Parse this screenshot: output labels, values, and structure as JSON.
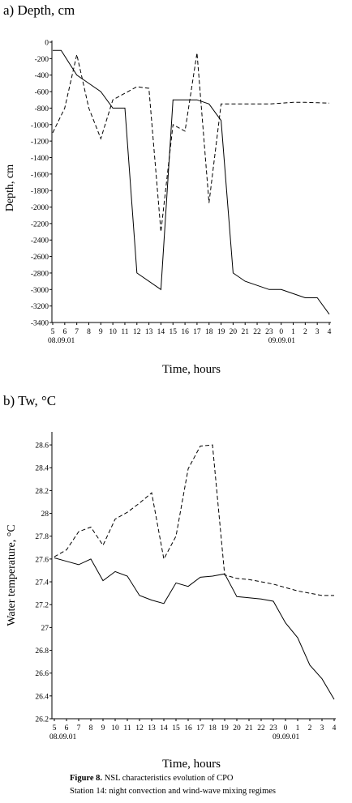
{
  "figure": {
    "caption_label": "Figure 8.",
    "caption_text": " NSL characteristics evolution of CPO",
    "caption_line2": "Station 14: night convection and wind-wave mixing regimes"
  },
  "chart_data": [
    {
      "type": "line",
      "title": "a) Depth, cm",
      "xlabel": "Time, hours",
      "ylabel": "Depth, cm",
      "categories": [
        "5",
        "6",
        "7",
        "8",
        "9",
        "10",
        "11",
        "12",
        "13",
        "14",
        "15",
        "16",
        "17",
        "18",
        "19",
        "20",
        "21",
        "22",
        "23",
        "0",
        "1",
        "2",
        "3",
        "4"
      ],
      "date_labels": [
        {
          "index": 0,
          "text": "08.09.01"
        },
        {
          "index": 19,
          "text": "09.09.01"
        }
      ],
      "ylim": [
        -3400,
        0
      ],
      "yticks": [
        0,
        -200,
        -400,
        -600,
        -800,
        -1000,
        -1200,
        -1400,
        -1600,
        -1800,
        -2000,
        -2200,
        -2400,
        -2600,
        -2800,
        -3000,
        -3200,
        -3400
      ],
      "grid": false,
      "series": [
        {
          "style": "solid",
          "points": [
            [
              0,
              -100
            ],
            [
              0.7,
              -100
            ],
            [
              2,
              -400
            ],
            [
              3,
              -500
            ],
            [
              4,
              -600
            ],
            [
              5,
              -800
            ],
            [
              6,
              -800
            ],
            [
              7,
              -2800
            ],
            [
              9,
              -3000
            ],
            [
              10,
              -700
            ],
            [
              12,
              -700
            ],
            [
              13,
              -750
            ],
            [
              14,
              -950
            ],
            [
              15,
              -2800
            ],
            [
              16,
              -2900
            ],
            [
              17,
              -2950
            ],
            [
              18,
              -3000
            ],
            [
              19,
              -3000
            ],
            [
              20,
              -3050
            ],
            [
              21,
              -3100
            ],
            [
              22,
              -3100
            ],
            [
              23,
              -3300
            ]
          ]
        },
        {
          "style": "dashed",
          "points": [
            [
              0,
              -1100
            ],
            [
              1,
              -800
            ],
            [
              2,
              -150
            ],
            [
              3,
              -800
            ],
            [
              4,
              -1170
            ],
            [
              5,
              -700
            ],
            [
              6,
              -620
            ],
            [
              7,
              -540
            ],
            [
              8,
              -560
            ],
            [
              9,
              -2300
            ],
            [
              10,
              -1000
            ],
            [
              11,
              -1080
            ],
            [
              12,
              -130
            ],
            [
              13,
              -1950
            ],
            [
              14,
              -750
            ],
            [
              15,
              -750
            ],
            [
              16,
              -750
            ],
            [
              17,
              -750
            ],
            [
              18,
              -750
            ],
            [
              19,
              -740
            ],
            [
              20,
              -730
            ],
            [
              21,
              -730
            ],
            [
              22,
              -735
            ],
            [
              23,
              -740
            ]
          ]
        }
      ]
    },
    {
      "type": "line",
      "title": "b) Tw, °C",
      "xlabel": "Time, hours",
      "ylabel": "Water temperature, °C",
      "categories": [
        "5",
        "6",
        "7",
        "8",
        "9",
        "10",
        "11",
        "12",
        "13",
        "14",
        "15",
        "16",
        "17",
        "18",
        "19",
        "20",
        "21",
        "22",
        "23",
        "0",
        "1",
        "2",
        "3",
        "4"
      ],
      "date_labels": [
        {
          "index": 0,
          "text": "08.09.01"
        },
        {
          "index": 19,
          "text": "09.09.01"
        }
      ],
      "ylim": [
        26.2,
        28.7
      ],
      "yticks": [
        26.2,
        26.4,
        26.6,
        26.8,
        27,
        27.2,
        27.4,
        27.6,
        27.8,
        28,
        28.2,
        28.4,
        28.6
      ],
      "ytick_labels": [
        "26.2",
        "26.4",
        "26.6",
        "26.8",
        "27",
        "27.2",
        "27.4",
        "27.6",
        "27.8",
        "28",
        "28.2",
        "28.4",
        "28.6"
      ],
      "grid": false,
      "series": [
        {
          "style": "solid",
          "points": [
            [
              0,
              27.61
            ],
            [
              1,
              27.58
            ],
            [
              2,
              27.55
            ],
            [
              3,
              27.6
            ],
            [
              4,
              27.41
            ],
            [
              5,
              27.49
            ],
            [
              6,
              27.45
            ],
            [
              7,
              27.28
            ],
            [
              8,
              27.24
            ],
            [
              9,
              27.21
            ],
            [
              10,
              27.39
            ],
            [
              11,
              27.36
            ],
            [
              12,
              27.44
            ],
            [
              13,
              27.45
            ],
            [
              14,
              27.47
            ],
            [
              15,
              27.27
            ],
            [
              16,
              27.26
            ],
            [
              17,
              27.25
            ],
            [
              18,
              27.23
            ],
            [
              19,
              27.04
            ],
            [
              20,
              26.91
            ],
            [
              21,
              26.67
            ],
            [
              22,
              26.55
            ],
            [
              23,
              26.37
            ]
          ]
        },
        {
          "style": "dashed",
          "points": [
            [
              0,
              27.62
            ],
            [
              1,
              27.68
            ],
            [
              2,
              27.84
            ],
            [
              3,
              27.88
            ],
            [
              4,
              27.72
            ],
            [
              5,
              27.95
            ],
            [
              6,
              28.01
            ],
            [
              7,
              28.09
            ],
            [
              8,
              28.18
            ],
            [
              9,
              27.6
            ],
            [
              10,
              27.8
            ],
            [
              11,
              28.39
            ],
            [
              12,
              28.59
            ],
            [
              13,
              28.6
            ],
            [
              14,
              27.46
            ],
            [
              15,
              27.43
            ],
            [
              16,
              27.42
            ],
            [
              17,
              27.4
            ],
            [
              18,
              27.38
            ],
            [
              19,
              27.35
            ],
            [
              20,
              27.32
            ],
            [
              21,
              27.3
            ],
            [
              22,
              27.28
            ],
            [
              23,
              27.28
            ]
          ]
        }
      ]
    }
  ]
}
